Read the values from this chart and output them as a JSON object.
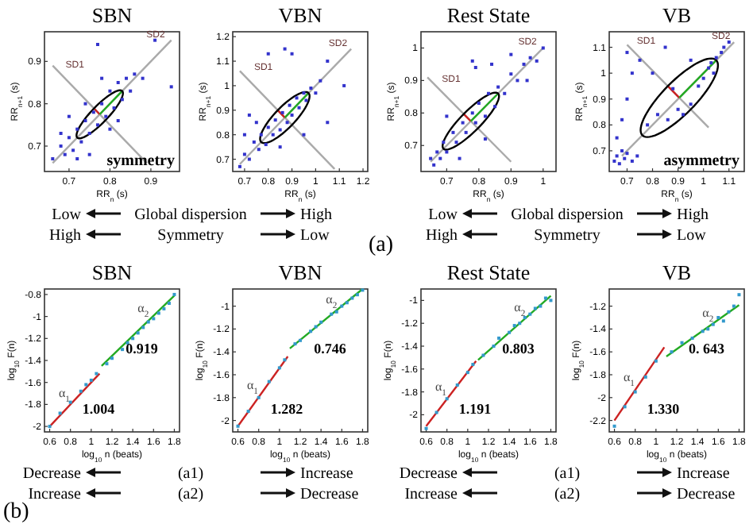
{
  "chart_data": [
    {
      "type": "scatter",
      "title": "SBN",
      "xlabel": "RR$_{n}$ (s)",
      "ylabel": "RR$_{n+1}$ (s)",
      "xlim": [
        0.64,
        0.97
      ],
      "ylim": [
        0.64,
        0.97
      ],
      "xticks": [
        0.7,
        0.8,
        0.9
      ],
      "yticks": [
        0.7,
        0.8,
        0.9
      ],
      "series": [
        {
          "type": "line",
          "color": "#aaaaaa",
          "x": [
            0.66,
            0.95
          ],
          "values": [
            0.66,
            0.95
          ]
        },
        {
          "type": "line",
          "color": "#aaaaaa",
          "x": [
            0.66,
            0.89
          ],
          "values": [
            0.89,
            0.66
          ]
        },
        {
          "type": "scatter",
          "color": "#3333cc",
          "x": [
            0.66,
            0.68,
            0.69,
            0.7,
            0.71,
            0.72,
            0.73,
            0.74,
            0.75,
            0.76,
            0.77,
            0.78,
            0.79,
            0.8,
            0.81,
            0.82,
            0.83,
            0.84,
            0.85,
            0.86,
            0.7,
            0.75,
            0.78,
            0.82,
            0.88,
            0.77,
            0.91,
            0.95,
            0.74,
            0.8,
            0.68,
            0.72
          ],
          "values": [
            0.67,
            0.7,
            0.68,
            0.72,
            0.69,
            0.74,
            0.71,
            0.76,
            0.73,
            0.78,
            0.75,
            0.8,
            0.77,
            0.83,
            0.79,
            0.85,
            0.81,
            0.86,
            0.83,
            0.87,
            0.77,
            0.68,
            0.86,
            0.76,
            0.86,
            0.94,
            0.95,
            0.84,
            0.8,
            0.74,
            0.73,
            0.67
          ]
        },
        {
          "type": "line",
          "color": "#cc2222",
          "x": [
            0.775,
            0.761
          ],
          "values": [
            0.775,
            0.789
          ]
        },
        {
          "type": "line",
          "color": "#22aa22",
          "x": [
            0.775,
            0.83
          ],
          "values": [
            0.775,
            0.83
          ]
        }
      ],
      "annotations": [
        {
          "text": "SD1",
          "x": 0.68,
          "y": 0.89
        },
        {
          "text": "SD2",
          "x": 0.95,
          "y": 0.95
        },
        "symmetry"
      ]
    },
    {
      "type": "scatter",
      "title": "VBN",
      "xlabel": "RR$_{n}$ (s)",
      "ylabel": "RR$_{n+1}$ (s)",
      "xlim": [
        0.65,
        1.22
      ],
      "ylim": [
        0.65,
        1.22
      ],
      "xticks": [
        0.7,
        0.8,
        0.9,
        1,
        1.1,
        1.2
      ],
      "yticks": [
        0.7,
        0.8,
        0.9,
        1,
        1.1,
        1.2
      ],
      "series": [
        {
          "type": "line",
          "color": "#aaaaaa",
          "x": [
            0.68,
            1.15
          ],
          "values": [
            0.68,
            1.15
          ]
        },
        {
          "type": "line",
          "color": "#aaaaaa",
          "x": [
            0.68,
            1.08
          ],
          "values": [
            1.06,
            0.66
          ]
        },
        {
          "type": "scatter",
          "color": "#3333cc",
          "x": [
            0.68,
            0.7,
            0.72,
            0.74,
            0.76,
            0.77,
            0.79,
            0.8,
            0.82,
            0.83,
            0.85,
            0.86,
            0.88,
            0.89,
            0.9,
            0.92,
            0.93,
            0.95,
            0.96,
            0.98,
            1.0,
            1.02,
            0.75,
            0.85,
            0.8,
            0.87,
            1.05,
            0.9,
            1.12,
            0.7,
            0.95,
            0.72,
            1.05
          ],
          "values": [
            0.67,
            0.72,
            0.7,
            0.77,
            0.74,
            0.8,
            0.76,
            0.83,
            0.8,
            0.86,
            0.82,
            0.89,
            0.85,
            0.92,
            0.88,
            0.95,
            0.91,
            0.97,
            0.94,
            0.99,
            0.97,
            1.02,
            0.85,
            0.75,
            1.13,
            1.15,
            1.1,
            1.13,
            1.0,
            0.8,
            0.8,
            0.88,
            0.85
          ]
        },
        {
          "type": "line",
          "color": "#cc2222",
          "x": [
            0.87,
            0.84
          ],
          "values": [
            0.87,
            0.9
          ]
        },
        {
          "type": "line",
          "color": "#22aa22",
          "x": [
            0.87,
            0.97
          ],
          "values": [
            0.87,
            0.97
          ]
        }
      ],
      "annotations": [
        {
          "text": "SD1",
          "x": 0.72,
          "y": 1.07
        },
        {
          "text": "SD2",
          "x": 1.16,
          "y": 1.15
        }
      ]
    },
    {
      "type": "scatter",
      "title": "Rest State",
      "xlabel": "RR$_{n}$ (s)",
      "ylabel": "RR$_{n+1}$ (s)",
      "xlim": [
        0.62,
        1.04
      ],
      "ylim": [
        0.62,
        1.05
      ],
      "xticks": [
        0.7,
        0.8,
        0.9,
        1
      ],
      "yticks": [
        0.7,
        0.8,
        0.9,
        1
      ],
      "series": [
        {
          "type": "line",
          "color": "#aaaaaa",
          "x": [
            0.65,
            1.0
          ],
          "values": [
            0.65,
            1.0
          ]
        },
        {
          "type": "line",
          "color": "#aaaaaa",
          "x": [
            0.64,
            0.9
          ],
          "values": [
            0.91,
            0.65
          ]
        },
        {
          "type": "scatter",
          "color": "#3333cc",
          "x": [
            0.65,
            0.66,
            0.67,
            0.68,
            0.69,
            0.7,
            0.72,
            0.73,
            0.75,
            0.76,
            0.78,
            0.79,
            0.8,
            0.82,
            0.83,
            0.85,
            0.86,
            0.88,
            0.9,
            0.92,
            0.94,
            0.96,
            0.98,
            1.0,
            0.78,
            0.79,
            0.9,
            0.84,
            0.82,
            0.7,
            0.74,
            0.95
          ],
          "values": [
            0.66,
            0.64,
            0.68,
            0.66,
            0.71,
            0.68,
            0.74,
            0.71,
            0.77,
            0.74,
            0.8,
            0.77,
            0.83,
            0.79,
            0.86,
            0.82,
            0.88,
            0.86,
            0.92,
            0.9,
            0.95,
            0.97,
            0.96,
            1.0,
            0.96,
            0.94,
            0.98,
            0.95,
            0.72,
            0.79,
            0.66,
            0.9
          ]
        },
        {
          "type": "line",
          "color": "#cc2222",
          "x": [
            0.775,
            0.753
          ],
          "values": [
            0.775,
            0.797
          ]
        },
        {
          "type": "line",
          "color": "#22aa22",
          "x": [
            0.775,
            0.86
          ],
          "values": [
            0.775,
            0.86
          ]
        }
      ],
      "annotations": [
        {
          "text": "SD1",
          "x": 0.67,
          "y": 0.9
        },
        {
          "text": "SD2",
          "x": 1.0,
          "y": 1.0
        }
      ]
    },
    {
      "type": "scatter",
      "title": "VB",
      "xlabel": "RR$_{n}$ (s)",
      "ylabel": "RR$_{n+1}$ (s)",
      "xlim": [
        0.63,
        1.16
      ],
      "ylim": [
        0.62,
        1.16
      ],
      "xticks": [
        0.7,
        0.8,
        0.9,
        1,
        1.1
      ],
      "yticks": [
        0.7,
        0.8,
        0.9,
        1,
        1.1
      ],
      "series": [
        {
          "type": "line",
          "color": "#aaaaaa",
          "x": [
            0.68,
            1.12
          ],
          "values": [
            0.68,
            1.12
          ]
        },
        {
          "type": "line",
          "color": "#aaaaaa",
          "x": [
            0.7,
            1.02
          ],
          "values": [
            1.11,
            0.79
          ]
        },
        {
          "type": "scatter",
          "color": "#3333cc",
          "x": [
            0.65,
            0.66,
            0.67,
            0.68,
            0.69,
            0.7,
            0.72,
            0.74,
            0.66,
            0.68,
            0.7,
            0.72,
            0.75,
            0.7,
            0.8,
            0.85,
            0.78,
            0.82,
            0.86,
            0.9,
            0.92,
            0.95,
            0.98,
            1.0,
            1.02,
            1.03,
            1.05,
            1.07,
            1.08,
            1.1,
            1.04,
            0.88,
            0.95
          ],
          "values": [
            0.66,
            0.68,
            0.65,
            0.7,
            0.67,
            0.69,
            0.66,
            0.68,
            0.75,
            0.82,
            0.9,
            1.0,
            1.05,
            1.08,
            1.0,
            1.1,
            0.8,
            0.84,
            0.82,
            0.86,
            0.84,
            0.88,
            0.95,
            0.98,
            1.02,
            1.04,
            1.06,
            1.08,
            1.1,
            1.12,
            1.0,
            0.94,
            1.05
          ]
        },
        {
          "type": "line",
          "color": "#cc2222",
          "x": [
            0.905,
            0.86
          ],
          "values": [
            0.905,
            0.95
          ]
        },
        {
          "type": "line",
          "color": "#22aa22",
          "x": [
            0.905,
            1.05
          ],
          "values": [
            0.905,
            1.05
          ]
        }
      ],
      "annotations": [
        {
          "text": "SD1",
          "x": 0.72,
          "y": 1.12
        },
        {
          "text": "SD2",
          "x": 1.13,
          "y": 1.12
        },
        "asymmetry"
      ]
    },
    {
      "type": "other",
      "annotations": [
        "Low",
        "Global dispersion",
        "High",
        "High",
        "Symmetry",
        "Low"
      ]
    },
    {
      "type": "other",
      "annotations": [
        "Low",
        "Global dispersion",
        "High",
        "High",
        "Symmetry",
        "Low"
      ]
    },
    {
      "type": "other",
      "title": "(a)"
    },
    {
      "type": "scatter",
      "title": "SBN",
      "xlabel": "log$_{10}$ n (beats)",
      "ylabel": "log$_{10}$ F(n)",
      "xlim": [
        0.55,
        1.85
      ],
      "ylim": [
        -2.05,
        -0.75
      ],
      "xticks": [
        0.6,
        0.8,
        1,
        1.2,
        1.4,
        1.6,
        1.8
      ],
      "yticks": [
        -2,
        -1.8,
        -1.6,
        -1.4,
        -1.2,
        -1,
        -0.8
      ],
      "series": [
        {
          "type": "scatter",
          "color": "#3399cc",
          "x": [
            0.6,
            0.7,
            0.8,
            0.9,
            0.95,
            1.0,
            1.05,
            1.15,
            1.2,
            1.3,
            1.35,
            1.4,
            1.45,
            1.5,
            1.55,
            1.6,
            1.65,
            1.7,
            1.75,
            1.8
          ],
          "values": [
            -2.0,
            -1.88,
            -1.78,
            -1.68,
            -1.62,
            -1.58,
            -1.52,
            -1.43,
            -1.38,
            -1.3,
            -1.24,
            -1.2,
            -1.15,
            -1.1,
            -1.05,
            -1.02,
            -0.97,
            -0.93,
            -0.88,
            -0.8
          ]
        },
        {
          "type": "line",
          "color": "#cc2222",
          "x": [
            0.6,
            1.08
          ],
          "values": [
            -2.0,
            -1.52
          ]
        },
        {
          "type": "line",
          "color": "#22aa22",
          "x": [
            1.1,
            1.8
          ],
          "values": [
            -1.45,
            -0.81
          ]
        }
      ],
      "annotations": [
        {
          "text": "α$_{1}$",
          "x": 0.84,
          "y": -1.76
        },
        {
          "text": "α$_{2}$",
          "x": 1.6,
          "y": -0.99
        },
        "0.919",
        "1.004"
      ]
    },
    {
      "type": "scatter",
      "title": "VBN",
      "xlabel": "log$_{10}$ n (beats)",
      "ylabel": "log$_{10}$ F(n)",
      "xlim": [
        0.55,
        1.85
      ],
      "ylim": [
        -2.1,
        -0.85
      ],
      "xticks": [
        0.6,
        0.8,
        1,
        1.2,
        1.4,
        1.6,
        1.8
      ],
      "yticks": [
        -2,
        -1.8,
        -1.6,
        -1.4,
        -1.2,
        -1
      ],
      "series": [
        {
          "type": "scatter",
          "color": "#3399cc",
          "x": [
            0.6,
            0.7,
            0.8,
            0.9,
            1.0,
            1.05,
            1.15,
            1.2,
            1.3,
            1.35,
            1.4,
            1.5,
            1.55,
            1.6,
            1.65,
            1.7,
            1.75,
            1.8
          ],
          "values": [
            -2.05,
            -1.92,
            -1.8,
            -1.66,
            -1.54,
            -1.47,
            -1.33,
            -1.3,
            -1.22,
            -1.18,
            -1.14,
            -1.07,
            -1.05,
            -1.0,
            -0.97,
            -0.93,
            -0.9,
            -0.86
          ]
        },
        {
          "type": "line",
          "color": "#cc2222",
          "x": [
            0.6,
            1.08
          ],
          "values": [
            -2.05,
            -1.44
          ]
        },
        {
          "type": "line",
          "color": "#22aa22",
          "x": [
            1.1,
            1.8
          ],
          "values": [
            -1.37,
            -0.85
          ]
        }
      ],
      "annotations": [
        {
          "text": "α$_{1}$",
          "x": 0.84,
          "y": -1.75
        },
        {
          "text": "α$_{2}$",
          "x": 1.6,
          "y": -1.0
        },
        "0.746",
        "1.282"
      ]
    },
    {
      "type": "scatter",
      "title": "Rest State",
      "xlabel": "log$_{10}$ n (beats)",
      "ylabel": "log$_{10}$ F(n)",
      "xlim": [
        0.55,
        1.85
      ],
      "ylim": [
        -2.15,
        -0.9
      ],
      "xticks": [
        0.6,
        0.8,
        1,
        1.2,
        1.4,
        1.6,
        1.8
      ],
      "yticks": [
        -2,
        -1.8,
        -1.6,
        -1.4,
        -1.2,
        -1
      ],
      "series": [
        {
          "type": "scatter",
          "color": "#3399cc",
          "x": [
            0.6,
            0.7,
            0.8,
            0.9,
            1.0,
            1.05,
            1.15,
            1.25,
            1.3,
            1.4,
            1.45,
            1.5,
            1.55,
            1.6,
            1.65,
            1.7,
            1.75,
            1.8
          ],
          "values": [
            -2.12,
            -1.98,
            -1.86,
            -1.74,
            -1.63,
            -1.56,
            -1.48,
            -1.4,
            -1.33,
            -1.28,
            -1.22,
            -1.2,
            -1.15,
            -1.12,
            -1.07,
            -1.05,
            -0.98,
            -1.0
          ]
        },
        {
          "type": "line",
          "color": "#cc2222",
          "x": [
            0.6,
            1.08
          ],
          "values": [
            -2.1,
            -1.53
          ]
        },
        {
          "type": "line",
          "color": "#22aa22",
          "x": [
            1.1,
            1.8
          ],
          "values": [
            -1.52,
            -0.96
          ]
        }
      ],
      "annotations": [
        {
          "text": "α$_{1}$",
          "x": 0.84,
          "y": -1.82
        },
        {
          "text": "α$_{2}$",
          "x": 1.6,
          "y": -1.12
        },
        "0.803",
        "1.191"
      ]
    },
    {
      "type": "scatter",
      "title": "VB",
      "xlabel": "log$_{10}$ n (beats)",
      "ylabel": "log$_{10}$ F(n)",
      "xlim": [
        0.55,
        1.85
      ],
      "ylim": [
        -2.3,
        -1.05
      ],
      "xticks": [
        0.6,
        0.8,
        1,
        1.2,
        1.4,
        1.6,
        1.8
      ],
      "yticks": [
        -2.2,
        -2,
        -1.8,
        -1.6,
        -1.4,
        -1.2
      ],
      "series": [
        {
          "type": "scatter",
          "color": "#3399cc",
          "x": [
            0.6,
            0.7,
            0.8,
            0.9,
            1.0,
            1.15,
            1.25,
            1.35,
            1.45,
            1.5,
            1.55,
            1.6,
            1.65,
            1.7,
            1.75,
            1.8
          ],
          "values": [
            -2.25,
            -2.08,
            -1.95,
            -1.82,
            -1.68,
            -1.6,
            -1.52,
            -1.48,
            -1.42,
            -1.4,
            -1.36,
            -1.3,
            -1.33,
            -1.25,
            -1.2,
            -1.1
          ]
        },
        {
          "type": "line",
          "color": "#cc2222",
          "x": [
            0.6,
            1.08
          ],
          "values": [
            -2.2,
            -1.56
          ]
        },
        {
          "type": "line",
          "color": "#22aa22",
          "x": [
            1.1,
            1.8
          ],
          "values": [
            -1.64,
            -1.19
          ]
        }
      ],
      "annotations": [
        {
          "text": "α$_{1}$",
          "x": 0.84,
          "y": -1.88
        },
        {
          "text": "α$_{2}$",
          "x": 1.6,
          "y": -1.32
        },
        "0. 643",
        "1.330"
      ]
    },
    {
      "type": "other",
      "annotations": [
        "Decrease",
        "(a1)",
        "Increase",
        "Increase",
        "(a2)",
        "Decrease"
      ]
    },
    {
      "type": "other",
      "annotations": [
        "Decrease",
        "(a1)",
        "Increase",
        "Increase",
        "(a2)",
        "Decrease"
      ]
    },
    {
      "type": "other",
      "title": "(b)"
    }
  ]
}
